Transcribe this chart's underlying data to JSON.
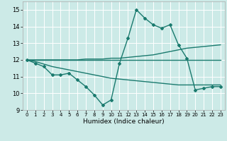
{
  "background_color": "#cceae7",
  "grid_color": "#ffffff",
  "line_color": "#1a7a6e",
  "x_label": "Humidex (Indice chaleur)",
  "xlim": [
    -0.5,
    23.5
  ],
  "ylim": [
    9,
    15.5
  ],
  "yticks": [
    9,
    10,
    11,
    12,
    13,
    14,
    15
  ],
  "xticks": [
    0,
    1,
    2,
    3,
    4,
    5,
    6,
    7,
    8,
    9,
    10,
    11,
    12,
    13,
    14,
    15,
    16,
    17,
    18,
    19,
    20,
    21,
    22,
    23
  ],
  "series": [
    {
      "x": [
        0,
        1,
        2,
        3,
        4,
        5,
        6,
        7,
        8,
        9,
        10,
        11,
        12,
        13,
        14,
        15,
        16,
        17,
        18,
        19,
        20,
        21,
        22,
        23
      ],
      "y": [
        12.0,
        11.8,
        11.6,
        11.1,
        11.1,
        11.2,
        10.8,
        10.4,
        9.9,
        9.3,
        9.6,
        11.8,
        13.3,
        15.0,
        14.5,
        14.1,
        13.9,
        14.1,
        12.9,
        12.1,
        10.2,
        10.3,
        10.4,
        10.4
      ],
      "marker": "D",
      "markersize": 2.0,
      "linewidth": 1.0
    },
    {
      "x": [
        0,
        23
      ],
      "y": [
        12.0,
        12.0
      ],
      "marker": null,
      "markersize": 0,
      "linewidth": 1.0
    },
    {
      "x": [
        0,
        1,
        2,
        3,
        4,
        5,
        6,
        7,
        8,
        9,
        10,
        11,
        12,
        13,
        14,
        15,
        16,
        17,
        18,
        19,
        20,
        21,
        22,
        23
      ],
      "y": [
        12.0,
        12.0,
        12.0,
        12.0,
        12.0,
        12.0,
        12.0,
        12.05,
        12.05,
        12.05,
        12.1,
        12.1,
        12.15,
        12.2,
        12.25,
        12.3,
        12.4,
        12.5,
        12.6,
        12.7,
        12.75,
        12.8,
        12.85,
        12.9
      ],
      "marker": null,
      "markersize": 0,
      "linewidth": 1.0
    },
    {
      "x": [
        0,
        1,
        2,
        3,
        4,
        5,
        6,
        7,
        8,
        9,
        10,
        11,
        12,
        13,
        14,
        15,
        16,
        17,
        18,
        19,
        20,
        21,
        22,
        23
      ],
      "y": [
        12.0,
        11.9,
        11.75,
        11.6,
        11.5,
        11.4,
        11.3,
        11.2,
        11.1,
        11.0,
        10.9,
        10.85,
        10.8,
        10.75,
        10.7,
        10.65,
        10.6,
        10.55,
        10.5,
        10.5,
        10.5,
        10.5,
        10.5,
        10.5
      ],
      "marker": null,
      "markersize": 0,
      "linewidth": 1.0
    }
  ]
}
